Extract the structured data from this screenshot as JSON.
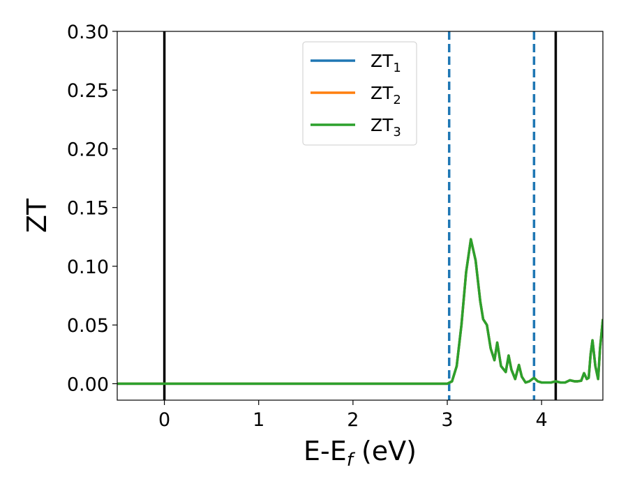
{
  "chart_data": {
    "type": "line",
    "xlabel": "E-E",
    "xlabel_sub": "f",
    "xlabel_unit": " (eV)",
    "ylabel": "ZT",
    "xlim": [
      -0.5,
      4.65
    ],
    "ylim": [
      -0.014,
      0.3
    ],
    "xticks": [
      0,
      1,
      2,
      3,
      4
    ],
    "yticks": [
      0.0,
      0.05,
      0.1,
      0.15,
      0.2,
      0.25,
      0.3
    ],
    "ytick_labels": [
      "0.00",
      "0.05",
      "0.10",
      "0.15",
      "0.20",
      "0.25",
      "0.30"
    ],
    "grid": false,
    "legend_position": "upper-center",
    "series": [
      {
        "name": "ZT",
        "sub": "1",
        "color": "#1f77b4",
        "x": [
          -0.5,
          3.0,
          3.05,
          3.1,
          3.15,
          3.2,
          3.25,
          3.3,
          3.35,
          3.38,
          3.42,
          3.46,
          3.5,
          3.53,
          3.57,
          3.62,
          3.65,
          3.68,
          3.72,
          3.76,
          3.79,
          3.83,
          3.87,
          3.92,
          3.96,
          4.0,
          4.05,
          4.1,
          4.15,
          4.2,
          4.25,
          4.3,
          4.35,
          4.38,
          4.42,
          4.45,
          4.48,
          4.5,
          4.52,
          4.54,
          4.57,
          4.6,
          4.62,
          4.65
        ],
        "y": [
          0.0,
          0.0,
          0.002,
          0.015,
          0.05,
          0.095,
          0.123,
          0.105,
          0.07,
          0.055,
          0.05,
          0.03,
          0.02,
          0.035,
          0.015,
          0.01,
          0.024,
          0.012,
          0.004,
          0.016,
          0.006,
          0.001,
          0.002,
          0.005,
          0.002,
          0.001,
          0.001,
          0.001,
          0.002,
          0.001,
          0.001,
          0.003,
          0.002,
          0.002,
          0.0025,
          0.009,
          0.004,
          0.005,
          0.025,
          0.037,
          0.015,
          0.004,
          0.03,
          0.055
        ]
      },
      {
        "name": "ZT",
        "sub": "2",
        "color": "#ff7f0e",
        "x": [
          -0.5,
          3.0,
          3.05,
          3.1,
          3.15,
          3.2,
          3.25,
          3.3,
          3.35,
          3.38,
          3.42,
          3.46,
          3.5,
          3.53,
          3.57,
          3.62,
          3.65,
          3.68,
          3.72,
          3.76,
          3.79,
          3.83,
          3.87,
          3.92,
          3.96,
          4.0,
          4.05,
          4.1,
          4.15,
          4.2,
          4.25,
          4.3,
          4.35,
          4.38,
          4.42,
          4.45,
          4.48,
          4.5,
          4.52,
          4.54,
          4.57,
          4.6,
          4.62,
          4.65
        ],
        "y": [
          0.0,
          0.0,
          0.002,
          0.015,
          0.05,
          0.095,
          0.123,
          0.105,
          0.07,
          0.055,
          0.05,
          0.03,
          0.02,
          0.035,
          0.015,
          0.01,
          0.024,
          0.012,
          0.004,
          0.016,
          0.006,
          0.001,
          0.002,
          0.005,
          0.002,
          0.001,
          0.001,
          0.001,
          0.002,
          0.001,
          0.001,
          0.003,
          0.002,
          0.002,
          0.0025,
          0.009,
          0.004,
          0.005,
          0.025,
          0.037,
          0.015,
          0.004,
          0.03,
          0.055
        ]
      },
      {
        "name": "ZT",
        "sub": "3",
        "color": "#2ca02c",
        "x": [
          -0.5,
          3.0,
          3.05,
          3.1,
          3.15,
          3.2,
          3.25,
          3.3,
          3.35,
          3.38,
          3.42,
          3.46,
          3.5,
          3.53,
          3.57,
          3.62,
          3.65,
          3.68,
          3.72,
          3.76,
          3.79,
          3.83,
          3.87,
          3.92,
          3.96,
          4.0,
          4.05,
          4.1,
          4.15,
          4.2,
          4.25,
          4.3,
          4.35,
          4.38,
          4.42,
          4.45,
          4.48,
          4.5,
          4.52,
          4.54,
          4.57,
          4.6,
          4.62,
          4.65
        ],
        "y": [
          0.0,
          0.0,
          0.002,
          0.015,
          0.05,
          0.095,
          0.123,
          0.105,
          0.07,
          0.055,
          0.05,
          0.03,
          0.02,
          0.035,
          0.015,
          0.01,
          0.024,
          0.012,
          0.004,
          0.016,
          0.006,
          0.001,
          0.002,
          0.005,
          0.002,
          0.001,
          0.001,
          0.001,
          0.002,
          0.001,
          0.001,
          0.003,
          0.002,
          0.002,
          0.0025,
          0.009,
          0.004,
          0.005,
          0.025,
          0.037,
          0.015,
          0.004,
          0.03,
          0.055
        ]
      }
    ],
    "vlines": [
      {
        "x": 0.0,
        "style": "solid",
        "color": "#000000"
      },
      {
        "x": 4.15,
        "style": "solid",
        "color": "#000000"
      },
      {
        "x": 3.02,
        "style": "dashed",
        "color": "#1f77b4"
      },
      {
        "x": 3.92,
        "style": "dashed",
        "color": "#1f77b4"
      }
    ]
  }
}
